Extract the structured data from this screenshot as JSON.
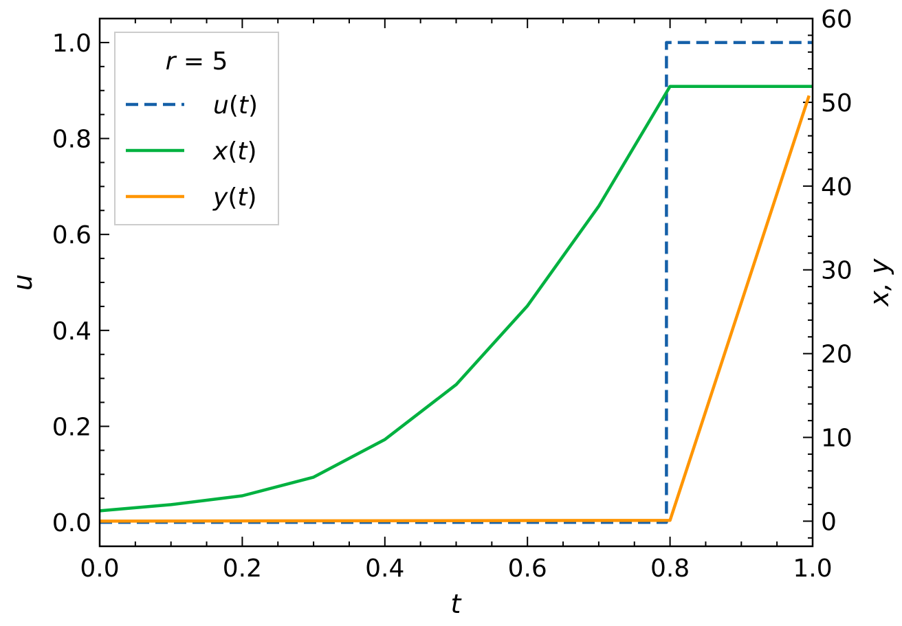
{
  "chart_data": {
    "type": "line",
    "title": "",
    "xlabel": "t",
    "ylabel_left": "u",
    "ylabel_right": "x, y",
    "xlim": [
      0,
      1.0
    ],
    "ylim_left": [
      -0.05,
      1.05
    ],
    "ylim_right": [
      -3,
      60
    ],
    "xticks": [
      0.0,
      0.2,
      0.4,
      0.6,
      0.8,
      1.0
    ],
    "xtick_labels": [
      "0.0",
      "0.2",
      "0.4",
      "0.6",
      "0.8",
      "1.0"
    ],
    "yticks_left": [
      0.0,
      0.2,
      0.4,
      0.6,
      0.8,
      1.0
    ],
    "ytick_labels_left": [
      "0.0",
      "0.2",
      "0.4",
      "0.6",
      "0.8",
      "1.0"
    ],
    "yticks_right": [
      0,
      10,
      20,
      30,
      40,
      50,
      60
    ],
    "ytick_labels_right": [
      "0",
      "10",
      "20",
      "30",
      "40",
      "50",
      "60"
    ],
    "grid": false,
    "legend": {
      "title": "r = 5",
      "title_var": "r",
      "title_rest": " = 5",
      "placement": "top-left"
    },
    "series": [
      {
        "name": "u(t)",
        "fn": "u",
        "axis": "left",
        "color": "#1560a8",
        "dash": true,
        "x": [
          0,
          0.795,
          0.795,
          1.0
        ],
        "y": [
          0,
          0,
          1.0,
          1.0
        ]
      },
      {
        "name": "x(t)",
        "fn": "x",
        "axis": "right",
        "color": "#00b140",
        "dash": false,
        "x": [
          0,
          0.1,
          0.2,
          0.3,
          0.4,
          0.5,
          0.6,
          0.7,
          0.8,
          1.0
        ],
        "y": [
          1.23,
          1.97,
          3.03,
          5.25,
          9.75,
          16.3,
          25.7,
          37.6,
          51.9,
          51.9
        ]
      },
      {
        "name": "y(t)",
        "fn": "y",
        "axis": "right",
        "color": "#ff9500",
        "dash": false,
        "x": [
          0,
          0.8,
          0.995
        ],
        "y": [
          0,
          0.1,
          50.8
        ]
      }
    ]
  }
}
